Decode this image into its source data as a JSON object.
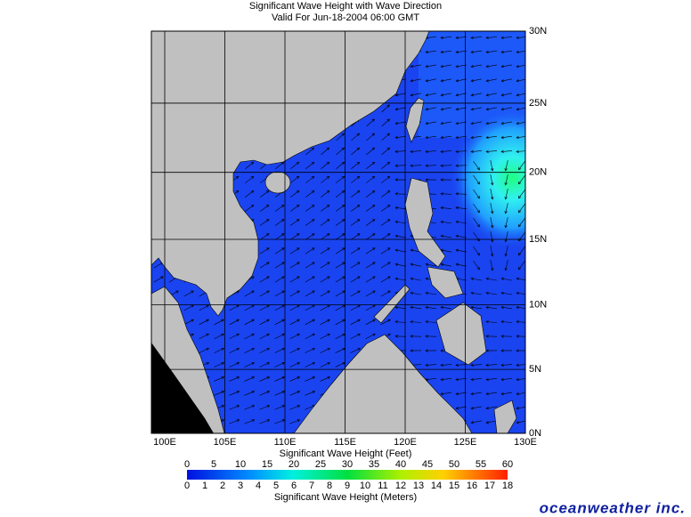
{
  "header": {
    "title": "Significant Wave Height with Wave Direction",
    "subtitle": "Valid For Jun-18-2004 06:00 GMT"
  },
  "map": {
    "lon_ticks": [
      {
        "value": 100,
        "label": "100E"
      },
      {
        "value": 105,
        "label": "105E"
      },
      {
        "value": 110,
        "label": "110E"
      },
      {
        "value": 115,
        "label": "115E"
      },
      {
        "value": 120,
        "label": "120E"
      },
      {
        "value": 125,
        "label": "125E"
      },
      {
        "value": 130,
        "label": "130E"
      }
    ],
    "lat_ticks": [
      {
        "value": 0,
        "label": "0N"
      },
      {
        "value": 5,
        "label": "5N"
      },
      {
        "value": 10,
        "label": "10N"
      },
      {
        "value": 15,
        "label": "15N"
      },
      {
        "value": 20,
        "label": "20N"
      },
      {
        "value": 25,
        "label": "25N"
      },
      {
        "value": 30,
        "label": "30N"
      }
    ]
  },
  "legend": {
    "feet_title": "Significant Wave Height (Feet)",
    "feet": [
      0,
      5,
      10,
      15,
      20,
      25,
      30,
      35,
      40,
      45,
      50,
      55,
      60
    ],
    "meters_title": "Significant Wave Height (Meters)",
    "meters": [
      0,
      1,
      2,
      3,
      4,
      5,
      6,
      7,
      8,
      9,
      10,
      11,
      12,
      13,
      14,
      15,
      16,
      17,
      18
    ]
  },
  "footer": {
    "logo": "oceanweather inc."
  }
}
